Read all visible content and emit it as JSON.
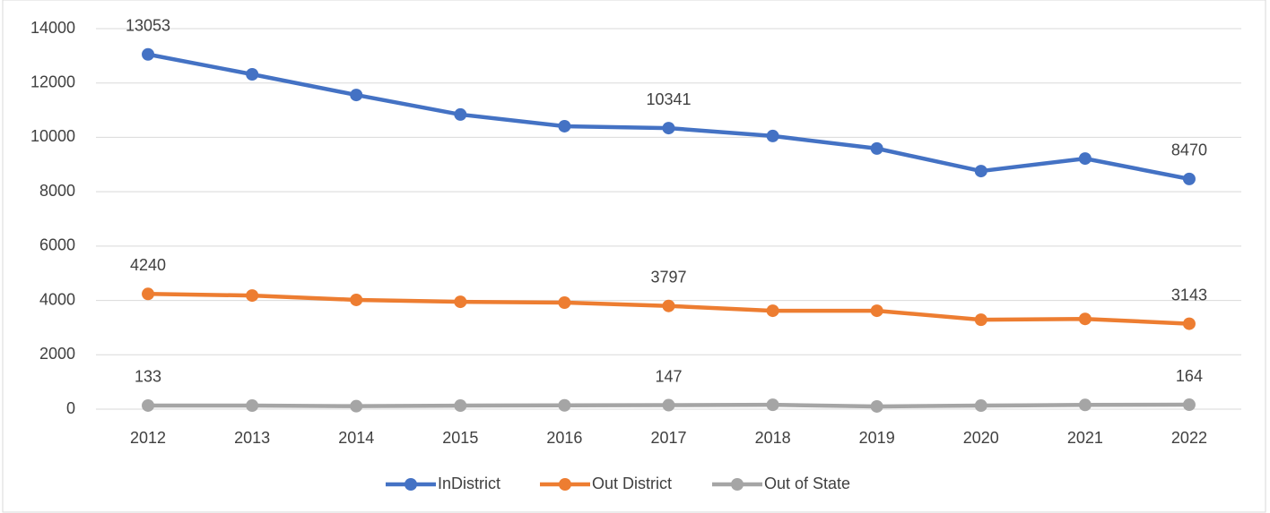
{
  "chart_data": {
    "type": "line",
    "categories": [
      "2012",
      "2013",
      "2014",
      "2015",
      "2016",
      "2017",
      "2018",
      "2019",
      "2020",
      "2021",
      "2022"
    ],
    "series": [
      {
        "name": "InDistrict",
        "color": "#4472c4",
        "values": [
          13053,
          12320,
          11560,
          10840,
          10410,
          10341,
          10050,
          9590,
          8760,
          9220,
          8470
        ]
      },
      {
        "name": "Out District",
        "color": "#ed7d31",
        "values": [
          4240,
          4180,
          4020,
          3950,
          3920,
          3797,
          3620,
          3620,
          3290,
          3320,
          3143
        ]
      },
      {
        "name": "Out of State",
        "color": "#a5a5a5",
        "values": [
          133,
          130,
          110,
          130,
          140,
          147,
          160,
          100,
          130,
          155,
          164
        ]
      }
    ],
    "data_label_indices": [
      0,
      5,
      10
    ],
    "ylim": [
      0,
      14000
    ],
    "yticks": [
      0,
      2000,
      4000,
      6000,
      8000,
      10000,
      12000,
      14000
    ],
    "grid": true,
    "legend": "bottom"
  }
}
